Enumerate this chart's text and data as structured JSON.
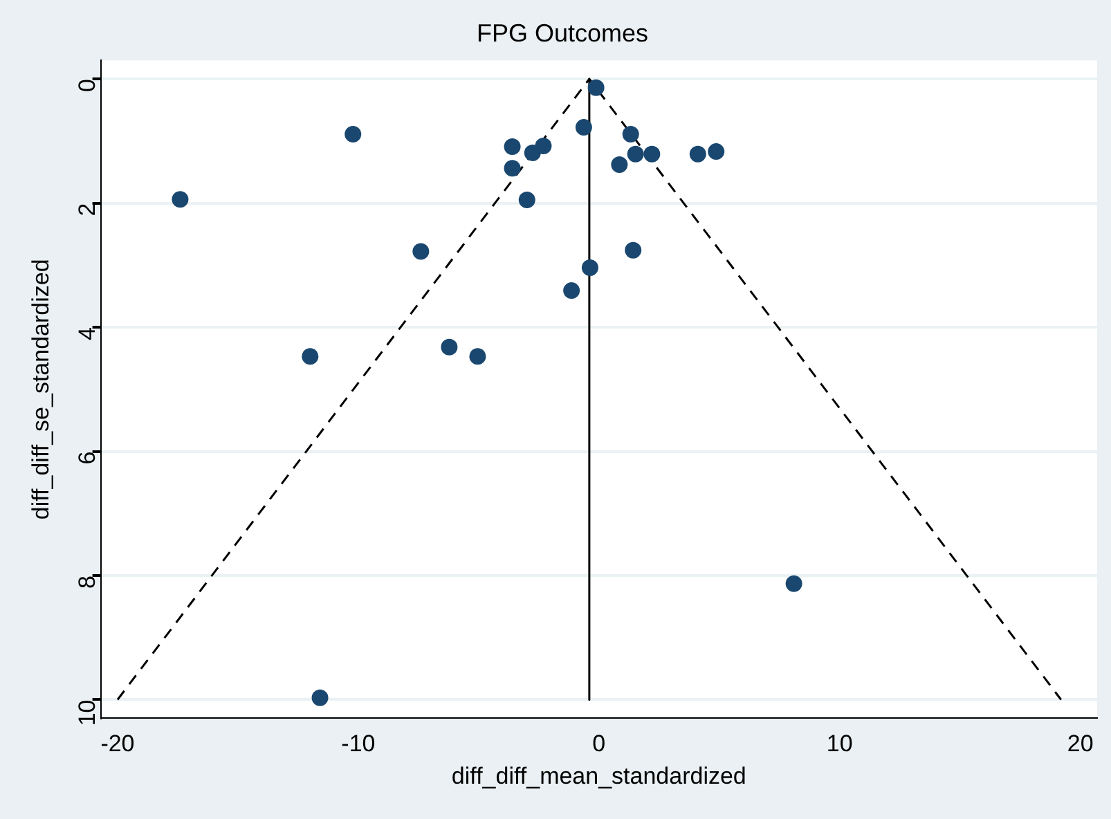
{
  "chart_data": {
    "type": "scatter",
    "title": "FPG Outcomes",
    "xlabel": "diff_diff_mean_standardized",
    "ylabel": "diff_diff_se_standardized",
    "xlim": [
      -20.7,
      20.7
    ],
    "xticks": [
      -20,
      -10,
      0,
      10,
      20
    ],
    "ylim": [
      10.3,
      -0.3
    ],
    "yticks": [
      0,
      2,
      4,
      6,
      8,
      10
    ],
    "grid": "y",
    "legend": false,
    "marker": "circle",
    "series": [
      {
        "type": "scatter",
        "color": "#1a476f",
        "x": [
          -17.4,
          -10.22,
          -3.6,
          -2.76,
          -2.31,
          -3.6,
          -2.99,
          -0.63,
          -0.12,
          -7.4,
          -0.37,
          -1.14,
          -12.0,
          -6.22,
          -5.04,
          1.32,
          0.85,
          2.2,
          4.11,
          4.87,
          1.42,
          1.52,
          8.1,
          -11.59
        ],
        "values": [
          1.94,
          0.89,
          1.09,
          1.19,
          1.08,
          1.44,
          1.95,
          0.78,
          0.14,
          2.78,
          3.04,
          3.41,
          4.47,
          4.32,
          4.47,
          0.89,
          1.38,
          1.21,
          1.21,
          1.17,
          2.76,
          1.21,
          8.13,
          9.97
        ]
      },
      {
        "type": "line",
        "color": "#000000",
        "line_style": "dashed",
        "marker": "none",
        "x": [
          -20.0,
          -0.4,
          19.2
        ],
        "values": [
          10,
          0,
          10
        ]
      },
      {
        "type": "line",
        "color": "#000000",
        "line_style": "solid",
        "marker": "none",
        "x": [
          -0.4,
          -0.4
        ],
        "values": [
          0,
          10
        ]
      }
    ]
  }
}
